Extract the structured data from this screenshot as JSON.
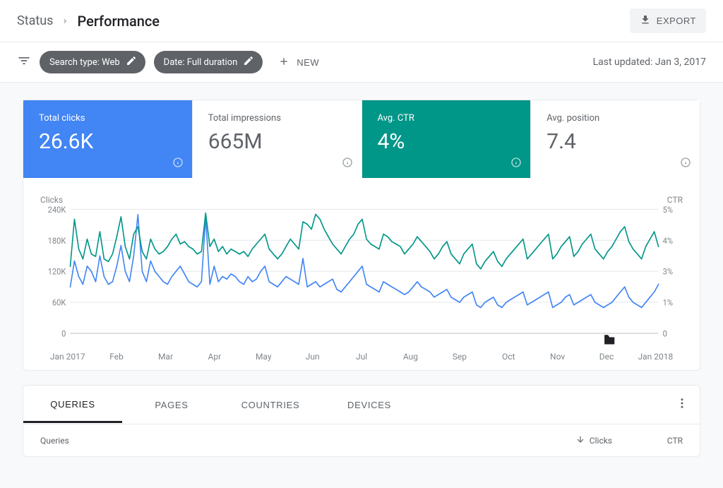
{
  "header": {
    "breadcrumb_root": "Status",
    "breadcrumb_current": "Performance",
    "export_label": "EXPORT"
  },
  "filters": {
    "search_type_chip": "Search type: Web",
    "date_chip": "Date: Full duration",
    "new_label": "NEW",
    "last_updated": "Last updated: Jan 3, 2017"
  },
  "metrics": [
    {
      "key": "total_clicks",
      "label": "Total clicks",
      "value": "26.6K",
      "active": true,
      "bg": "#4285f4",
      "fg": "#ffffff"
    },
    {
      "key": "total_impressions",
      "label": "Total impressions",
      "value": "665M",
      "active": false,
      "bg": "#ffffff",
      "fg": "#5f6368"
    },
    {
      "key": "avg_ctr",
      "label": "Avg. CTR",
      "value": "4%",
      "active": true,
      "bg": "#009688",
      "fg": "#ffffff"
    },
    {
      "key": "avg_position",
      "label": "Avg. position",
      "value": "7.4",
      "active": false,
      "bg": "#ffffff",
      "fg": "#5f6368"
    }
  ],
  "chart": {
    "type": "line",
    "left_axis_label": "Clicks",
    "right_axis_label": "CTR",
    "left_ticks": [
      "240K",
      "180K",
      "120K",
      "60K",
      "0"
    ],
    "right_ticks": [
      "5%",
      "4%",
      "3%",
      "1%",
      "0"
    ],
    "left_max": 240,
    "right_max": 5,
    "x_labels": [
      "Jan 2017",
      "Feb",
      "Mar",
      "Apr",
      "May",
      "Jun",
      "Jul",
      "Aug",
      "Sep",
      "Oct",
      "Nov",
      "Dec",
      "Jan 2018"
    ],
    "grid_color": "#e8eaed",
    "background_color": "#ffffff",
    "line_width": 1.6,
    "series": {
      "clicks": {
        "color": "#4285f4",
        "max": 240,
        "values": [
          90,
          140,
          110,
          95,
          130,
          120,
          100,
          150,
          110,
          95,
          100,
          130,
          170,
          120,
          100,
          150,
          230,
          120,
          100,
          140,
          120,
          110,
          100,
          95,
          110,
          120,
          130,
          115,
          100,
          95,
          90,
          100,
          225,
          95,
          130,
          100,
          110,
          105,
          115,
          110,
          100,
          95,
          110,
          100,
          105,
          120,
          130,
          100,
          95,
          90,
          100,
          110,
          105,
          100,
          95,
          145,
          90,
          95,
          100,
          90,
          95,
          100,
          105,
          85,
          80,
          90,
          100,
          110,
          120,
          130,
          95,
          90,
          85,
          80,
          100,
          95,
          90,
          85,
          80,
          75,
          80,
          90,
          100,
          90,
          85,
          80,
          70,
          75,
          80,
          85,
          70,
          65,
          60,
          70,
          75,
          80,
          55,
          50,
          60,
          65,
          70,
          55,
          50,
          60,
          65,
          70,
          75,
          80,
          55,
          60,
          65,
          70,
          75,
          80,
          50,
          55,
          60,
          70,
          75,
          55,
          60,
          65,
          70,
          75,
          60,
          55,
          50,
          55,
          60,
          70,
          80,
          90,
          70,
          60,
          55,
          50,
          60,
          70,
          80,
          95
        ]
      },
      "ctr": {
        "color": "#009688",
        "max": 5,
        "values": [
          2.7,
          4.6,
          3.4,
          3.0,
          3.8,
          3.2,
          3.1,
          4.1,
          3.0,
          2.9,
          3.2,
          3.9,
          4.7,
          3.5,
          3.0,
          4.0,
          4.3,
          3.3,
          3.0,
          3.8,
          3.4,
          3.2,
          3.3,
          3.5,
          3.8,
          4.0,
          3.6,
          3.7,
          3.5,
          3.4,
          3.2,
          3.3,
          4.85,
          3.5,
          3.8,
          3.3,
          3.5,
          3.2,
          3.4,
          3.3,
          3.2,
          3.3,
          3.1,
          3.4,
          3.6,
          3.8,
          4.0,
          3.4,
          3.2,
          3.0,
          3.2,
          3.5,
          3.8,
          3.6,
          3.4,
          4.5,
          4.4,
          4.2,
          4.8,
          4.6,
          4.2,
          3.9,
          3.6,
          3.4,
          3.2,
          3.5,
          3.8,
          4.0,
          4.4,
          4.6,
          3.8,
          3.6,
          3.5,
          3.4,
          4.0,
          3.9,
          3.7,
          3.6,
          3.5,
          3.2,
          3.4,
          3.6,
          3.9,
          3.7,
          3.5,
          3.3,
          3.0,
          3.2,
          3.5,
          3.7,
          3.2,
          3.0,
          2.8,
          3.2,
          3.4,
          3.6,
          2.8,
          2.6,
          2.9,
          3.1,
          3.3,
          2.9,
          2.7,
          3.0,
          3.2,
          3.4,
          3.6,
          3.8,
          3.0,
          3.2,
          3.4,
          3.6,
          3.8,
          4.0,
          3.0,
          3.2,
          3.5,
          3.7,
          3.9,
          3.1,
          3.3,
          3.6,
          3.8,
          4.0,
          3.4,
          3.2,
          3.0,
          3.3,
          3.5,
          3.8,
          4.1,
          4.3,
          3.7,
          3.4,
          3.2,
          3.0,
          3.5,
          3.8,
          4.1,
          3.5
        ]
      }
    }
  },
  "tabs": {
    "items": [
      "QUERIES",
      "PAGES",
      "COUNTRIES",
      "DEVICES"
    ],
    "active_index": 0
  },
  "table": {
    "col_main": "Queries",
    "col_clicks": "Clicks",
    "col_ctr": "CTR"
  }
}
